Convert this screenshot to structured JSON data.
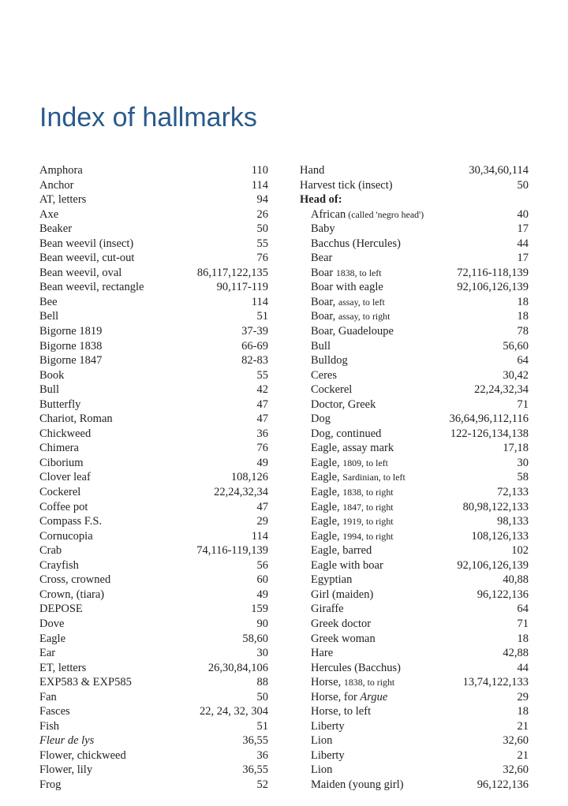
{
  "title": "Index of hallmarks",
  "title_color": "#2a5a8a",
  "title_fontsize": 34,
  "body_fontsize": 14.5,
  "text_color": "#222222",
  "columns": [
    [
      {
        "term": "Amphora",
        "pages": "110"
      },
      {
        "term": "Anchor",
        "pages": "114"
      },
      {
        "term": "AT, letters",
        "pages": "94"
      },
      {
        "term": "Axe",
        "pages": "26"
      },
      {
        "term": "Beaker",
        "pages": "50"
      },
      {
        "term": "Bean weevil (insect)",
        "pages": "55"
      },
      {
        "term": "Bean weevil, cut-out",
        "pages": "76"
      },
      {
        "term": "Bean weevil, oval",
        "pages": "86,117,122,135"
      },
      {
        "term": "Bean weevil, rectangle",
        "pages": "90,117-119"
      },
      {
        "term": "Bee",
        "pages": "114"
      },
      {
        "term": "Bell",
        "pages": "51"
      },
      {
        "term": "Bigorne 1819",
        "pages": "37-39"
      },
      {
        "term": "Bigorne 1838",
        "pages": "66-69"
      },
      {
        "term": "Bigorne 1847",
        "pages": "82-83"
      },
      {
        "term": "Book",
        "pages": "55"
      },
      {
        "term": "Bull",
        "pages": "42"
      },
      {
        "term": "Butterfly",
        "pages": "47"
      },
      {
        "term": "Chariot, Roman",
        "pages": "47"
      },
      {
        "term": "Chickweed",
        "pages": "36"
      },
      {
        "term": "Chimera",
        "pages": "76"
      },
      {
        "term": "Ciborium",
        "pages": "49"
      },
      {
        "term": "Clover leaf",
        "pages": "108,126"
      },
      {
        "term": "Cockerel",
        "pages": "22,24,32,34"
      },
      {
        "term": "Coffee pot",
        "pages": "47"
      },
      {
        "term": "Compass F.S.",
        "pages": "29"
      },
      {
        "term": "Cornucopia",
        "pages": "114"
      },
      {
        "term": "Crab",
        "pages": "74,116-119,139"
      },
      {
        "term": "Crayfish",
        "pages": "56"
      },
      {
        "term": "Cross, crowned",
        "pages": "60"
      },
      {
        "term": "Crown, (tiara)",
        "pages": "49"
      },
      {
        "term": "DEPOSE",
        "pages": "159"
      },
      {
        "term": "Dove",
        "pages": "90"
      },
      {
        "term": "Eagle",
        "pages": "58,60"
      },
      {
        "term": "Ear",
        "pages": "30"
      },
      {
        "term": "ET, letters",
        "pages": "26,30,84,106"
      },
      {
        "term": "EXP583 & EXP585",
        "pages": "88"
      },
      {
        "term": "Fan",
        "pages": "50"
      },
      {
        "term": "Fasces",
        "pages": "22, 24, 32, 304"
      },
      {
        "term": "Fish",
        "pages": "51"
      },
      {
        "term": "Fleur de lys",
        "pages": "36,55",
        "italic": true
      },
      {
        "term": "Flower, chickweed",
        "pages": "36"
      },
      {
        "term": "Flower, lily",
        "pages": "36,55"
      },
      {
        "term": "Frog",
        "pages": "52"
      }
    ],
    [
      {
        "term": "Hand",
        "pages": "30,34,60,114"
      },
      {
        "term": "Harvest tick (insect)",
        "pages": "50"
      },
      {
        "term": "Head of:",
        "pages": "",
        "bold": true
      },
      {
        "term": "African",
        "sub": " (called 'negro head')",
        "pages": "40",
        "indent": true
      },
      {
        "term": "Baby",
        "pages": "17",
        "indent": true
      },
      {
        "term": "Bacchus (Hercules)",
        "pages": "44",
        "indent": true
      },
      {
        "term": "Bear",
        "pages": "17",
        "indent": true
      },
      {
        "term": "Boar ",
        "sub": "1838, to left",
        "pages": "72,116-118,139",
        "indent": true
      },
      {
        "term": "Boar with eagle",
        "pages": "92,106,126,139",
        "indent": true
      },
      {
        "term": "Boar, ",
        "sub": "assay, to left",
        "pages": "18",
        "indent": true
      },
      {
        "term": "Boar, ",
        "sub": "assay, to right",
        "pages": "18",
        "indent": true
      },
      {
        "term": "Boar, Guadeloupe",
        "pages": "78",
        "indent": true
      },
      {
        "term": "Bull",
        "pages": "56,60",
        "indent": true
      },
      {
        "term": "Bulldog",
        "pages": "64",
        "indent": true
      },
      {
        "term": "Ceres",
        "pages": "30,42",
        "indent": true
      },
      {
        "term": "Cockerel",
        "pages": "22,24,32,34",
        "indent": true
      },
      {
        "term": "Doctor, Greek",
        "pages": "71",
        "indent": true
      },
      {
        "term": "Dog",
        "pages": "36,64,96,112,116",
        "indent": true
      },
      {
        "term": "Dog, continued",
        "pages": "122-126,134,138",
        "indent": true
      },
      {
        "term": "Eagle, assay mark",
        "pages": "17,18",
        "indent": true
      },
      {
        "term": "Eagle, ",
        "sub": "1809, to left",
        "pages": "30",
        "indent": true
      },
      {
        "term": "Eagle, ",
        "sub": "Sardinian, to left",
        "pages": "58",
        "indent": true
      },
      {
        "term": "Eagle, ",
        "sub": "1838, to right",
        "pages": "72,133",
        "indent": true
      },
      {
        "term": "Eagle, ",
        "sub": "1847, to right",
        "pages": "80,98,122,133",
        "indent": true
      },
      {
        "term": "Eagle, ",
        "sub": "1919, to right",
        "pages": "98,133",
        "indent": true
      },
      {
        "term": "Eagle, ",
        "sub": "1994, to right",
        "pages": "108,126,133",
        "indent": true
      },
      {
        "term": "Eagle, barred",
        "pages": "102",
        "indent": true
      },
      {
        "term": "Eagle with boar",
        "pages": "92,106,126,139",
        "indent": true
      },
      {
        "term": "Egyptian",
        "pages": "40,88",
        "indent": true
      },
      {
        "term": "Girl (maiden)",
        "pages": "96,122,136",
        "indent": true
      },
      {
        "term": "Giraffe",
        "pages": "64",
        "indent": true
      },
      {
        "term": "Greek doctor",
        "pages": "71",
        "indent": true
      },
      {
        "term": "Greek woman",
        "pages": "18",
        "indent": true
      },
      {
        "term": "Hare",
        "pages": "42,88",
        "indent": true
      },
      {
        "term": "Hercules (Bacchus)",
        "pages": "44",
        "indent": true
      },
      {
        "term": "Horse, ",
        "sub": "1838, to right",
        "pages": "13,74,122,133",
        "indent": true
      },
      {
        "term": "Horse, for ",
        "subitalic": "Argue",
        "pages": "29",
        "indent": true
      },
      {
        "term": "Horse, to left",
        "pages": "18",
        "indent": true
      },
      {
        "term": "Liberty",
        "pages": "21",
        "indent": true
      },
      {
        "term": "Lion",
        "pages": "32,60",
        "indent": true
      },
      {
        "term": "Liberty",
        "pages": "21",
        "indent": true
      },
      {
        "term": "Lion",
        "pages": "32,60",
        "indent": true
      },
      {
        "term": "Maiden (young girl)",
        "pages": "96,122,136",
        "indent": true
      }
    ]
  ]
}
